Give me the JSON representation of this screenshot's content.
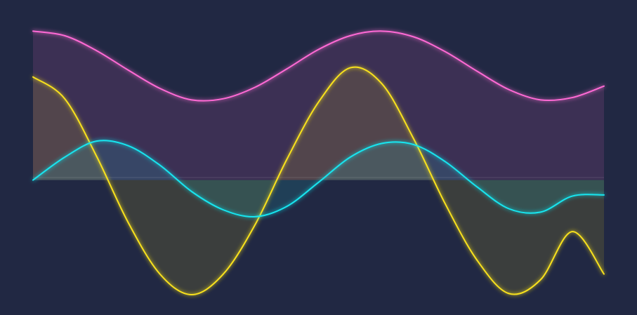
{
  "colors": {
    "background": "#212843",
    "pink": "#ff6ad5",
    "yellow": "#f9e21c",
    "cyan": "#19e6f0"
  },
  "chart_data": {
    "type": "area",
    "title": "",
    "xlabel": "",
    "ylabel": "",
    "grid": false,
    "legend": "none",
    "xlim": [
      0,
      6.3
    ],
    "ylim": [
      -1.0,
      1.4
    ],
    "x": [
      0,
      0.35,
      0.7,
      1.05,
      1.4,
      1.75,
      2.1,
      2.45,
      2.8,
      3.15,
      3.5,
      3.85,
      4.2,
      4.55,
      4.9,
      5.25,
      5.6,
      5.95,
      6.3
    ],
    "series": [
      {
        "key": "pink",
        "values": [
          1.3,
          1.26,
          1.13,
          0.96,
          0.8,
          0.7,
          0.71,
          0.81,
          0.97,
          1.14,
          1.26,
          1.3,
          1.25,
          1.12,
          0.95,
          0.79,
          0.7,
          0.72,
          0.82
        ]
      },
      {
        "key": "yellow",
        "values": [
          0.9,
          0.71,
          0.21,
          -0.37,
          -0.82,
          -1.0,
          -0.82,
          -0.39,
          0.18,
          0.68,
          0.98,
          0.84,
          0.36,
          -0.21,
          -0.7,
          -0.99,
          -0.87,
          -0.45,
          -0.82
        ]
      },
      {
        "key": "cyan",
        "values": [
          0.0,
          0.2,
          0.34,
          0.3,
          0.13,
          -0.1,
          -0.26,
          -0.32,
          -0.23,
          -0.02,
          0.2,
          0.32,
          0.31,
          0.16,
          -0.06,
          -0.25,
          -0.28,
          -0.14,
          -0.13
        ]
      }
    ]
  }
}
